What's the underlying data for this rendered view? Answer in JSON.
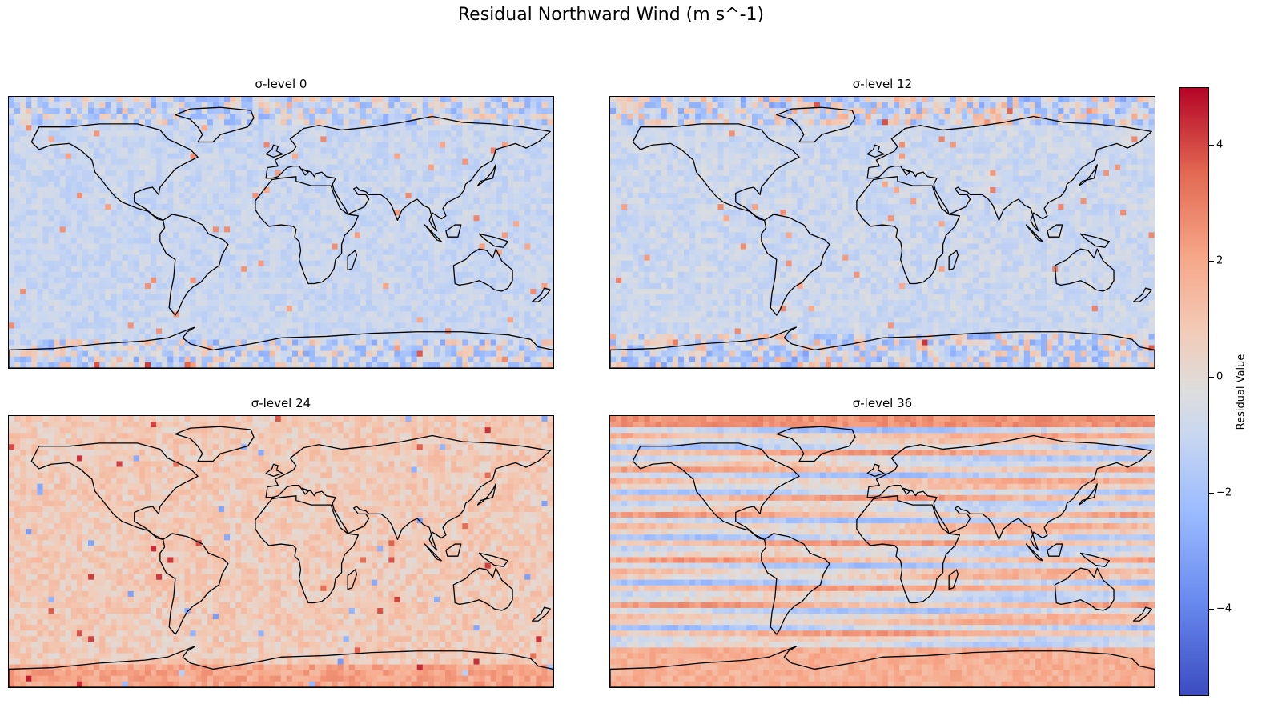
{
  "figure": {
    "suptitle": "Residual Northward Wind (m s^-1)"
  },
  "chart_data": {
    "type": "heatmap",
    "title": "Residual Northward Wind (m s^-1)",
    "colormap": "coolwarm",
    "colorbar": {
      "label": "Residual Value",
      "range": [
        -5.5,
        5.0
      ],
      "ticks": [
        -4,
        -2,
        0,
        2,
        4
      ],
      "tick_labels": [
        "−4",
        "−2",
        "0",
        "2",
        "4"
      ],
      "position": "right"
    },
    "panels": [
      {
        "title": "σ-level 0",
        "sigma_level": 0,
        "typical_range": [
          -2.5,
          4.5
        ],
        "bias": "slightly negative",
        "map_background": "#c8d5ef"
      },
      {
        "title": "σ-level 12",
        "sigma_level": 12,
        "typical_range": [
          -3.5,
          4.0
        ],
        "bias": "slightly negative",
        "map_background": "#cdd8ee"
      },
      {
        "title": "σ-level 24",
        "sigma_level": 24,
        "typical_range": [
          -4.0,
          4.5
        ],
        "bias": "slightly positive",
        "map_background": "#efcebf"
      },
      {
        "title": "σ-level 36",
        "sigma_level": 36,
        "typical_range": [
          -4.5,
          4.5
        ],
        "bias": "zonal bands of both signs",
        "map_background": "#e9d2cc"
      }
    ],
    "grid": false,
    "basemap": "world coastlines"
  }
}
